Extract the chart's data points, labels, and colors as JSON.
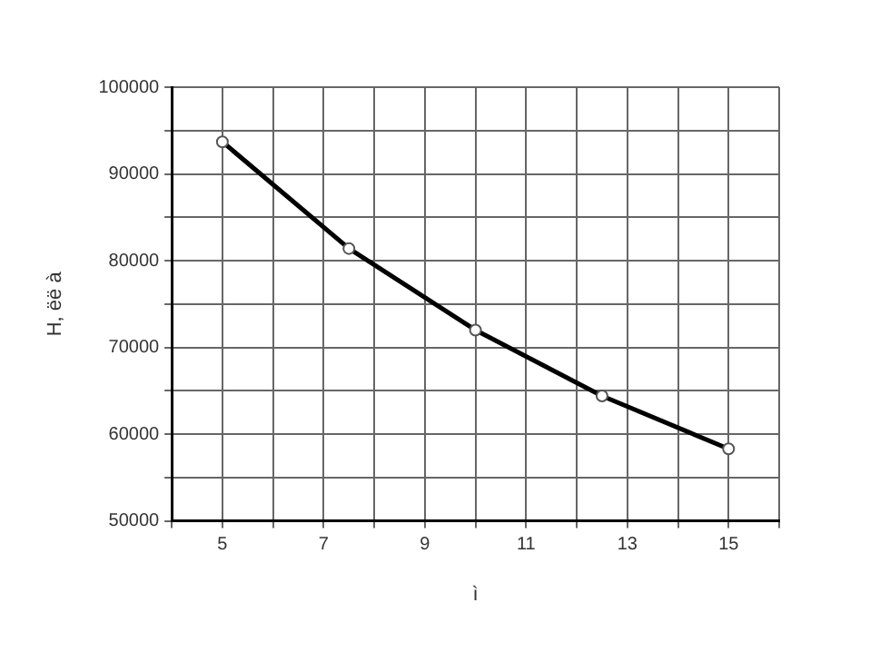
{
  "chart_data": {
    "type": "line",
    "xlabel": "ì",
    "ylabel": "H, ёё à",
    "x": [
      5,
      7.5,
      10,
      12.5,
      15
    ],
    "series": [
      {
        "color": "#000000",
        "values": [
          93700,
          81400,
          72000,
          64400,
          58300
        ]
      }
    ],
    "xlim": [
      4,
      16
    ],
    "xticks": [
      {
        "value": 4,
        "label": null
      },
      5,
      {
        "value": 6,
        "label": null
      },
      7,
      {
        "value": 8,
        "label": null
      },
      9,
      {
        "value": 10,
        "label": null
      },
      11,
      {
        "value": 12,
        "label": null
      },
      13,
      {
        "value": 14,
        "label": null
      },
      15,
      {
        "value": 16,
        "label": null
      }
    ],
    "ylim": [
      50000,
      100000
    ],
    "yticks": [
      50000,
      {
        "value": 55000,
        "label": null
      },
      60000,
      {
        "value": 65000,
        "label": null
      },
      70000,
      {
        "value": 75000,
        "label": null
      },
      80000,
      {
        "value": 85000,
        "label": null
      },
      90000,
      {
        "value": 95000,
        "label": null
      },
      100000
    ],
    "grid": true,
    "legend": false,
    "marker": "circle",
    "line_style": "solid"
  }
}
